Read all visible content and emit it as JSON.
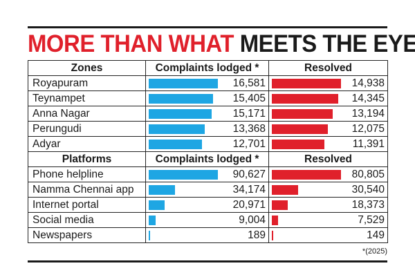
{
  "title": {
    "red": "MORE THAN WHAT",
    "black": "MEETS THE EYE"
  },
  "colors": {
    "complaints": "#1ea6e3",
    "resolved": "#e0202b",
    "title_red": "#e0202b"
  },
  "footnote": "*(2025)",
  "chart_data": [
    {
      "type": "bar",
      "title": "",
      "category_header": "Zones",
      "categories": [
        "Royapuram",
        "Teynampet",
        "Anna Nagar",
        "Perungudi",
        "Adyar"
      ],
      "series": [
        {
          "name": "Complaints lodged *",
          "values": [
            "16,581",
            "15,405",
            "15,171",
            "13,368",
            "12,701"
          ],
          "numeric": [
            16581,
            15405,
            15171,
            13368,
            12701
          ]
        },
        {
          "name": "Resolved",
          "values": [
            "14,938",
            "14,345",
            "13,194",
            "12,075",
            "11,391"
          ],
          "numeric": [
            14938,
            14345,
            13194,
            12075,
            11391
          ]
        }
      ]
    },
    {
      "type": "bar",
      "title": "",
      "category_header": "Platforms",
      "categories": [
        "Phone helpline",
        "Namma Chennai app",
        "Internet portal",
        "Social media",
        "Newspapers"
      ],
      "series": [
        {
          "name": "Complaints lodged *",
          "values": [
            "90,627",
            "34,174",
            "20,971",
            "9,004",
            "189"
          ],
          "numeric": [
            90627,
            34174,
            20971,
            9004,
            189
          ]
        },
        {
          "name": "Resolved",
          "values": [
            "80,805",
            "30,540",
            "18,373",
            "7,529",
            "149"
          ],
          "numeric": [
            80805,
            30540,
            18373,
            7529,
            149
          ]
        }
      ]
    }
  ]
}
